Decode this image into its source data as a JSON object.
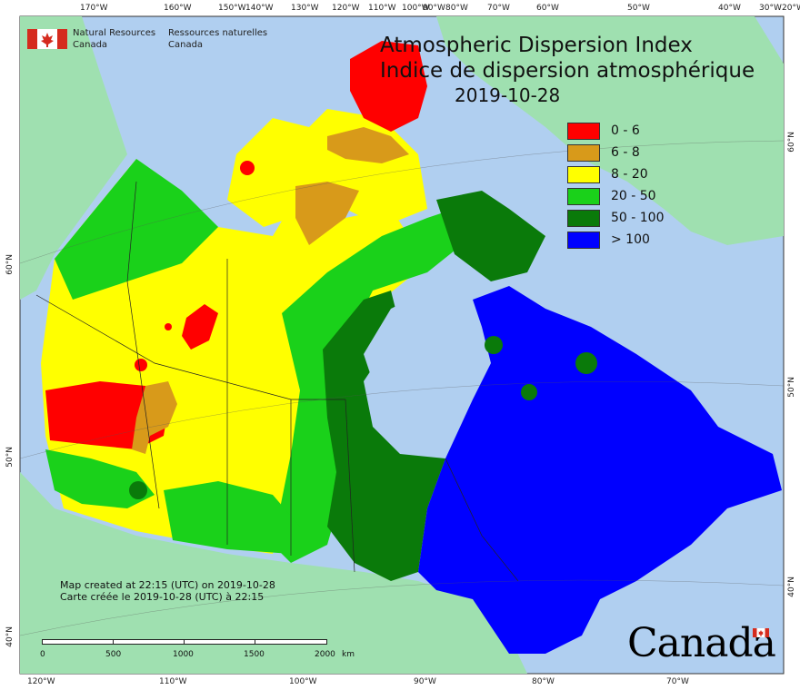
{
  "map": {
    "title_en": "Atmospheric Dispersion Index",
    "title_fr": "Indice de dispersion atmosphérique",
    "date": "2019-10-28",
    "agency_en": [
      "Natural Resources",
      "Canada"
    ],
    "agency_fr": [
      "Ressources naturelles",
      "Canada"
    ],
    "credit_en": "Map created at 22:15 (UTC) on 2019-10-28",
    "credit_fr": "Carte créée le 2019-10-28 (UTC) à 22:15",
    "wordmark": "Canada",
    "colors": {
      "ocean": "#b0cff0",
      "land_outside": "#9fe0b0",
      "class_0_6": "#ff0000",
      "class_6_8": "#d89a1a",
      "class_8_20": "#ffff00",
      "class_20_50": "#1ad11a",
      "class_50_100": "#0a7a0a",
      "class_100_plus": "#0000ff",
      "no_data": "#aaaaaa"
    },
    "legend": [
      {
        "label": "0 - 6",
        "color": "#ff0000"
      },
      {
        "label": "6 - 8",
        "color": "#d89a1a"
      },
      {
        "label": "8 - 20",
        "color": "#ffff00"
      },
      {
        "label": "20 - 50",
        "color": "#1ad11a"
      },
      {
        "label": "50 - 100",
        "color": "#0a7a0a"
      },
      {
        "label": "> 100",
        "color": "#0000ff"
      }
    ],
    "graticule": {
      "top": [
        "170°W",
        "160°W",
        "150°W",
        "140°W",
        "130°W",
        "120°W",
        "110°W",
        "100°W",
        "90°W",
        "80°W",
        "70°W",
        "60°W",
        "50°W",
        "40°W",
        "30°W",
        "20°W"
      ],
      "bottom": [
        "120°W",
        "110°W",
        "100°W",
        "90°W",
        "80°W",
        "70°W"
      ],
      "left": [
        "60°N",
        "50°N",
        "40°N"
      ],
      "right": [
        "60°N",
        "50°N",
        "40°N"
      ]
    },
    "scale": {
      "labels": [
        "0",
        "500",
        "1000",
        "1500",
        "2000"
      ],
      "unit": "km"
    }
  }
}
